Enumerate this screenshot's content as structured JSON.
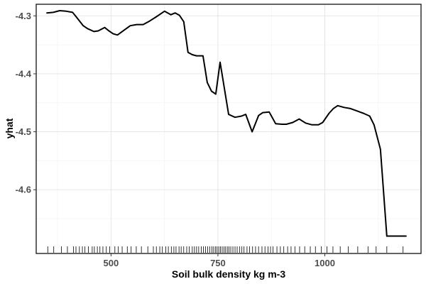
{
  "chart_data": {
    "type": "line",
    "title": "",
    "xlabel": "Soil bulk density kg m-3",
    "ylabel": "yhat",
    "xlim": [
      325,
      1225
    ],
    "ylim": [
      -4.71,
      -4.28
    ],
    "x_ticks": [
      500,
      750,
      1000
    ],
    "x_tick_labels": [
      "500",
      "750",
      "1000"
    ],
    "x_minor_ticks": [
      375,
      625,
      875,
      1125
    ],
    "y_ticks": [
      -4.3,
      -4.4,
      -4.5,
      -4.6
    ],
    "y_tick_labels": [
      "-4.3",
      "-4.4",
      "-4.5",
      "-4.6"
    ],
    "y_minor_ticks": [
      -4.35,
      -4.45,
      -4.55,
      -4.65
    ],
    "grid": true,
    "legend": "none",
    "line_color": "#000000",
    "series": [
      {
        "x": [
          350,
          365,
          380,
          395,
          410,
          420,
          435,
          445,
          460,
          470,
          485,
          495,
          505,
          515,
          530,
          545,
          560,
          575,
          590,
          605,
          615,
          625,
          640,
          650,
          660,
          670,
          680,
          690,
          700,
          715,
          725,
          735,
          745,
          755,
          765,
          775,
          790,
          805,
          815,
          830,
          845,
          855,
          870,
          885,
          900,
          910,
          925,
          940,
          955,
          970,
          985,
          995,
          1010,
          1020,
          1030,
          1045,
          1060,
          1075,
          1090,
          1105,
          1115,
          1130,
          1145,
          1160,
          1175,
          1190
        ],
        "y": [
          -4.295,
          -4.294,
          -4.291,
          -4.292,
          -4.294,
          -4.303,
          -4.317,
          -4.322,
          -4.327,
          -4.326,
          -4.32,
          -4.326,
          -4.331,
          -4.333,
          -4.325,
          -4.317,
          -4.315,
          -4.315,
          -4.309,
          -4.302,
          -4.297,
          -4.292,
          -4.298,
          -4.295,
          -4.299,
          -4.31,
          -4.363,
          -4.367,
          -4.369,
          -4.369,
          -4.415,
          -4.43,
          -4.435,
          -4.38,
          -4.425,
          -4.47,
          -4.475,
          -4.473,
          -4.47,
          -4.5,
          -4.472,
          -4.467,
          -4.466,
          -4.486,
          -4.487,
          -4.487,
          -4.484,
          -4.478,
          -4.485,
          -4.488,
          -4.488,
          -4.484,
          -4.468,
          -4.46,
          -4.455,
          -4.458,
          -4.46,
          -4.464,
          -4.468,
          -4.473,
          -4.488,
          -4.53,
          -4.68,
          -4.68,
          -4.68,
          -4.68
        ]
      }
    ],
    "rug": [
      352,
      366,
      384,
      398,
      412,
      418,
      426,
      433,
      439,
      447,
      456,
      461,
      468,
      474,
      481,
      489,
      497,
      509,
      517,
      526,
      538,
      547,
      559,
      571,
      586,
      599,
      606,
      614,
      620,
      628,
      634,
      641,
      647,
      652,
      659,
      664,
      670,
      677,
      683,
      690,
      695,
      700,
      705,
      711,
      716,
      721,
      726,
      731,
      736,
      740,
      744,
      748,
      752,
      756,
      760,
      764,
      768,
      772,
      776,
      780,
      785,
      790,
      795,
      801,
      806,
      811,
      818,
      824,
      831,
      838,
      845,
      853,
      860,
      867,
      873,
      879,
      888,
      896,
      904,
      913,
      921,
      930,
      941,
      953,
      966,
      978,
      992,
      1005,
      1019,
      1036,
      1055,
      1077,
      1101,
      1120,
      1145,
      1183
    ]
  }
}
